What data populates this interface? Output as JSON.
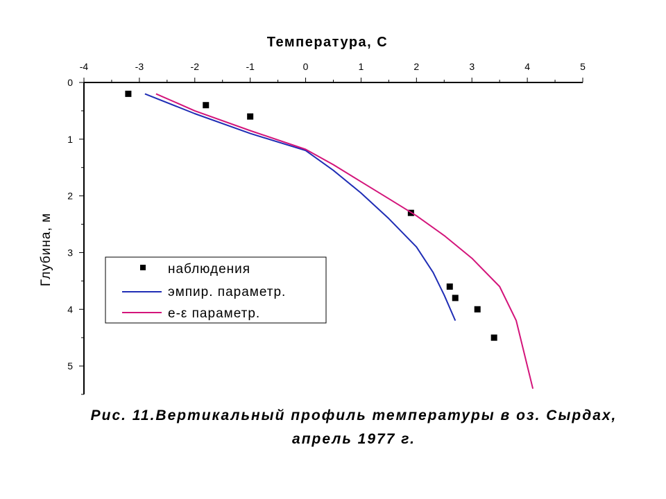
{
  "chart_data": {
    "type": "line",
    "title": "Температура, С",
    "xlabel": "Температура, С",
    "ylabel": "Глубина, м",
    "x_axis_position": "top",
    "y_inverted": true,
    "xlim": [
      -4,
      5
    ],
    "ylim": [
      0,
      5.5
    ],
    "x_ticks": [
      "-4",
      "-3",
      "-2",
      "-1",
      "0",
      "1",
      "2",
      "3",
      "4",
      "5"
    ],
    "y_ticks": [
      "0",
      "1",
      "2",
      "3",
      "4",
      "5"
    ],
    "grid": false,
    "legend_position": "bottom-left",
    "series": [
      {
        "name": "наблюдения",
        "kind": "scatter",
        "marker": "square",
        "color": "#000000",
        "x": [
          -3.2,
          -1.8,
          -1.0,
          1.9,
          2.6,
          2.7,
          3.1,
          3.4
        ],
        "y": [
          0.2,
          0.4,
          0.6,
          2.3,
          3.6,
          3.8,
          4.0,
          4.5
        ]
      },
      {
        "name": "эмпир. параметр.",
        "kind": "line",
        "color": "#1f2db5",
        "x": [
          -2.9,
          -2.0,
          -1.0,
          0.0,
          0.5,
          1.0,
          1.5,
          2.0,
          2.3,
          2.5,
          2.7
        ],
        "y": [
          0.2,
          0.55,
          0.9,
          1.2,
          1.55,
          1.95,
          2.4,
          2.9,
          3.35,
          3.75,
          4.2
        ]
      },
      {
        "name": "е-ε параметр.",
        "kind": "line",
        "color": "#d3147a",
        "x": [
          -2.7,
          -2.0,
          -1.0,
          0.0,
          0.5,
          1.0,
          1.5,
          2.0,
          2.5,
          3.0,
          3.5,
          3.8,
          4.1
        ],
        "y": [
          0.2,
          0.5,
          0.85,
          1.18,
          1.45,
          1.75,
          2.05,
          2.35,
          2.7,
          3.1,
          3.6,
          4.2,
          5.4
        ]
      }
    ]
  },
  "caption": {
    "line1": "Рис. 11.Вертикальный профиль температуры в оз. Сырдах,",
    "line2": "апрель 1977 г."
  }
}
